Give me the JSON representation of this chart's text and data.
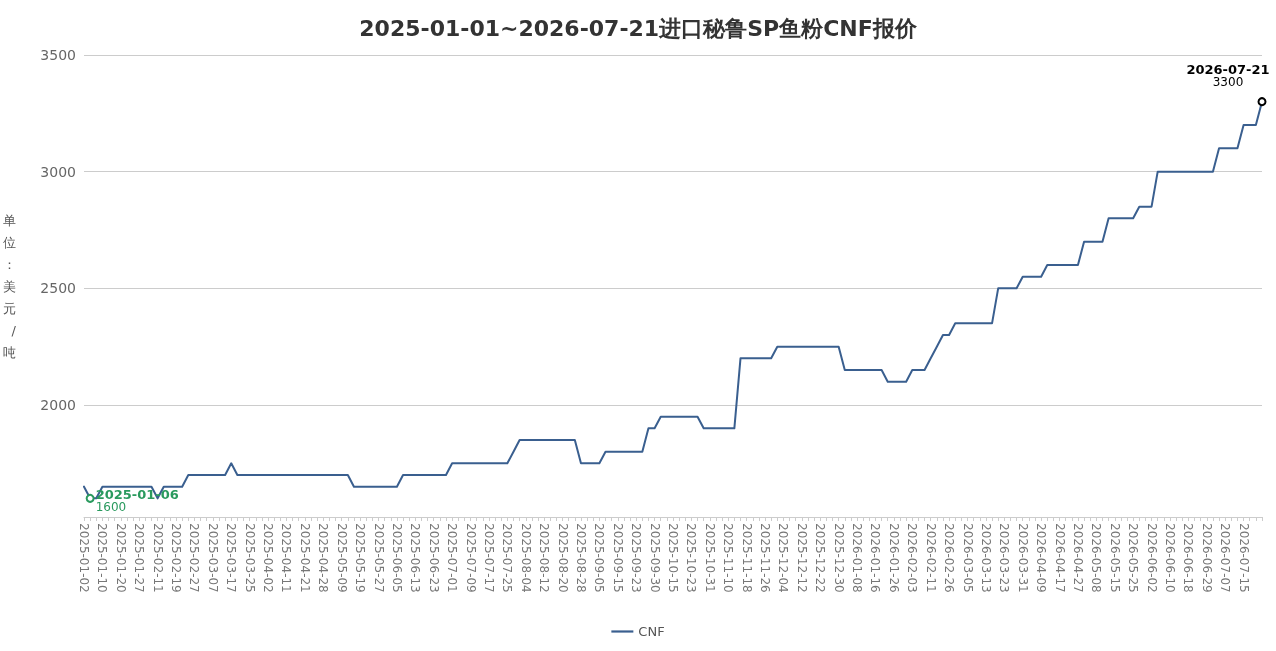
{
  "chart_data": {
    "type": "line",
    "title": "2025-01-01~2026-07-21进口秘鲁SP鱼粉CNF报价",
    "ylabel": "单位：美元/吨",
    "categories": [
      "2025-01-02",
      null,
      null,
      "2025-01-10",
      null,
      null,
      "2025-01-20",
      null,
      null,
      "2025-01-27",
      null,
      null,
      "2025-02-11",
      null,
      null,
      "2025-02-19",
      null,
      null,
      "2025-02-27",
      null,
      null,
      "2025-03-07",
      null,
      null,
      "2025-03-17",
      null,
      null,
      "2025-03-25",
      null,
      null,
      "2025-04-02",
      null,
      null,
      "2025-04-11",
      null,
      null,
      "2025-04-21",
      null,
      null,
      "2025-04-28",
      null,
      null,
      "2025-05-09",
      null,
      null,
      "2025-05-19",
      null,
      null,
      "2025-05-27",
      null,
      null,
      "2025-06-05",
      null,
      null,
      "2025-06-13",
      null,
      null,
      "2025-06-23",
      null,
      null,
      "2025-07-01",
      null,
      null,
      "2025-07-09",
      null,
      null,
      "2025-07-17",
      null,
      null,
      "2025-07-25",
      null,
      null,
      "2025-08-04",
      null,
      null,
      "2025-08-12",
      null,
      null,
      "2025-08-20",
      null,
      null,
      "2025-08-28",
      null,
      null,
      "2025-09-05",
      null,
      null,
      "2025-09-15",
      null,
      null,
      "2025-09-23",
      null,
      null,
      "2025-09-30",
      null,
      null,
      "2025-10-15",
      null,
      null,
      "2025-10-23",
      null,
      null,
      "2025-10-31",
      null,
      null,
      "2025-11-10",
      null,
      null,
      "2025-11-18",
      null,
      null,
      "2025-11-26",
      null,
      null,
      "2025-12-04",
      null,
      null,
      "2025-12-12",
      null,
      null,
      "2025-12-22",
      null,
      null,
      "2025-12-30",
      null,
      null,
      "2026-01-08",
      null,
      null,
      "2026-01-16",
      null,
      null,
      "2026-01-26",
      null,
      null,
      "2026-02-03",
      null,
      null,
      "2026-02-11",
      null,
      null,
      "2026-02-26",
      null,
      null,
      "2026-03-05",
      null,
      null,
      "2026-03-13",
      null,
      null,
      "2026-03-23",
      null,
      null,
      "2026-03-31",
      null,
      null,
      "2026-04-09",
      null,
      null,
      "2026-04-17",
      null,
      null,
      "2026-04-27",
      null,
      null,
      "2026-05-08",
      null,
      null,
      "2026-05-15",
      null,
      null,
      "2026-05-25",
      null,
      null,
      "2026-06-02",
      null,
      null,
      "2026-06-10",
      null,
      null,
      "2026-06-18",
      null,
      null,
      "2026-06-29",
      null,
      null,
      "2026-07-07",
      null,
      null,
      "2026-07-15",
      null,
      null,
      null
    ],
    "series": [
      {
        "name": "CNF",
        "color": "#3a5f8f",
        "values": [
          1650,
          1600,
          1600,
          1650,
          1650,
          1650,
          1650,
          1650,
          1650,
          1650,
          1650,
          1650,
          1600,
          1650,
          1650,
          1650,
          1650,
          1700,
          1700,
          1700,
          1700,
          1700,
          1700,
          1700,
          1750,
          1700,
          1700,
          1700,
          1700,
          1700,
          1700,
          1700,
          1700,
          1700,
          1700,
          1700,
          1700,
          1700,
          1700,
          1700,
          1700,
          1700,
          1700,
          1700,
          1650,
          1650,
          1650,
          1650,
          1650,
          1650,
          1650,
          1650,
          1700,
          1700,
          1700,
          1700,
          1700,
          1700,
          1700,
          1700,
          1750,
          1750,
          1750,
          1750,
          1750,
          1750,
          1750,
          1750,
          1750,
          1750,
          1800,
          1850,
          1850,
          1850,
          1850,
          1850,
          1850,
          1850,
          1850,
          1850,
          1850,
          1750,
          1750,
          1750,
          1750,
          1800,
          1800,
          1800,
          1800,
          1800,
          1800,
          1800,
          1900,
          1900,
          1950,
          1950,
          1950,
          1950,
          1950,
          1950,
          1950,
          1900,
          1900,
          1900,
          1900,
          1900,
          1900,
          2200,
          2200,
          2200,
          2200,
          2200,
          2200,
          2250,
          2250,
          2250,
          2250,
          2250,
          2250,
          2250,
          2250,
          2250,
          2250,
          2250,
          2150,
          2150,
          2150,
          2150,
          2150,
          2150,
          2150,
          2100,
          2100,
          2100,
          2100,
          2150,
          2150,
          2150,
          2200,
          2250,
          2300,
          2300,
          2350,
          2350,
          2350,
          2350,
          2350,
          2350,
          2350,
          2500,
          2500,
          2500,
          2500,
          2550,
          2550,
          2550,
          2550,
          2600,
          2600,
          2600,
          2600,
          2600,
          2600,
          2700,
          2700,
          2700,
          2700,
          2800,
          2800,
          2800,
          2800,
          2800,
          2850,
          2850,
          2850,
          3000,
          3000,
          3000,
          3000,
          3000,
          3000,
          3000,
          3000,
          3000,
          3000,
          3100,
          3100,
          3100,
          3100,
          3200,
          3200,
          3200,
          3300
        ],
        "value_labels": [
          null,
          "1600",
          null,
          null,
          null,
          null,
          null,
          null,
          null,
          null,
          null,
          null,
          null,
          null,
          null,
          null,
          null,
          null,
          null,
          null,
          null,
          null,
          null,
          null,
          null,
          null,
          null,
          null,
          null,
          null,
          null,
          null,
          null,
          null,
          null,
          null,
          null,
          null,
          null,
          null,
          null,
          null,
          null,
          null,
          null,
          null,
          null,
          null,
          null,
          null,
          null,
          null,
          null,
          null,
          null,
          null,
          null,
          null,
          null,
          null,
          null,
          null,
          null,
          null,
          null,
          null,
          null,
          null,
          null,
          null,
          null,
          null,
          null,
          null,
          null,
          null,
          null,
          null,
          null,
          null,
          null,
          null,
          null,
          null,
          null,
          null,
          null,
          null,
          null,
          null,
          null,
          null,
          null,
          null,
          null,
          null,
          null,
          null,
          null,
          null,
          null,
          null,
          null,
          null,
          null,
          null,
          null,
          null,
          null,
          null,
          null,
          null,
          null,
          null,
          null,
          null,
          null,
          null,
          null,
          null,
          null,
          null,
          null,
          null,
          null,
          null,
          null,
          null,
          null,
          null,
          null,
          null,
          null,
          null,
          null,
          null,
          null,
          null,
          null,
          null,
          null,
          null,
          null,
          null,
          null,
          null,
          null,
          null,
          null,
          null,
          null,
          null,
          null,
          null,
          null,
          null,
          null,
          null,
          null,
          null,
          null,
          null,
          null,
          null,
          null,
          null,
          null,
          null,
          null,
          null,
          null,
          null,
          null,
          null,
          null,
          null,
          null,
          null,
          null,
          null,
          null,
          null,
          null,
          null,
          null,
          null,
          null,
          null,
          null,
          null,
          null,
          null,
          "3300"
        ]
      }
    ],
    "annotations": [
      "2025-01-06",
      "2026-07-21"
    ],
    "ylim": [
      1520,
      3500
    ],
    "yticks": [
      2000,
      2500,
      3000,
      3500
    ],
    "grid": "y",
    "legend": "bottom",
    "marker": "none",
    "line_style": "solid"
  }
}
